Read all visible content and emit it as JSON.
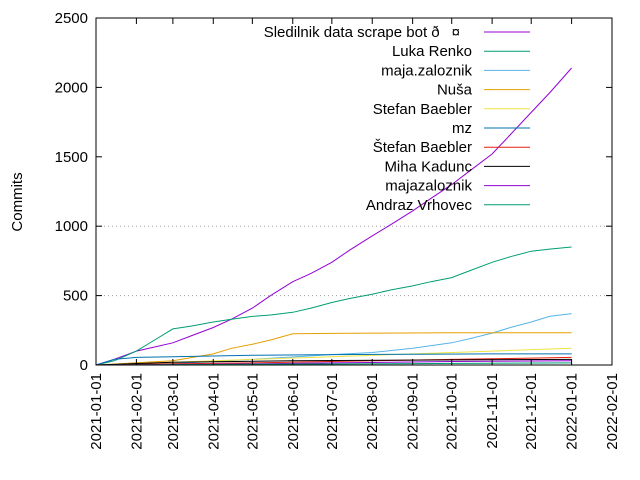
{
  "chart_data": {
    "type": "line",
    "title": "",
    "xlabel": "",
    "ylabel": "Commits",
    "xlim": [
      "2021-01-01",
      "2022-02-01"
    ],
    "ylim": [
      0,
      2500
    ],
    "x_ticks": [
      "2021-01-01",
      "2021-02-01",
      "2021-03-01",
      "2021-04-01",
      "2021-05-01",
      "2021-06-01",
      "2021-07-01",
      "2021-08-01",
      "2021-09-01",
      "2021-10-01",
      "2021-11-01",
      "2021-12-01",
      "2022-01-01",
      "2022-02-01"
    ],
    "y_ticks": [
      0,
      500,
      1000,
      1500,
      2000,
      2500
    ],
    "y_grid": [
      500,
      1000
    ],
    "legend_position": "top-right",
    "series": [
      {
        "name": "Sledilnik data scrape bot ð¤",
        "color": "#9400d3",
        "points": [
          [
            "2021-01-01",
            0
          ],
          [
            "2021-01-15",
            40
          ],
          [
            "2021-02-01",
            100
          ],
          [
            "2021-02-15",
            130
          ],
          [
            "2021-03-01",
            160
          ],
          [
            "2021-03-15",
            210
          ],
          [
            "2021-04-01",
            270
          ],
          [
            "2021-04-15",
            330
          ],
          [
            "2021-05-01",
            410
          ],
          [
            "2021-05-15",
            500
          ],
          [
            "2021-06-01",
            600
          ],
          [
            "2021-06-15",
            660
          ],
          [
            "2021-07-01",
            740
          ],
          [
            "2021-07-15",
            830
          ],
          [
            "2021-08-01",
            930
          ],
          [
            "2021-08-15",
            1010
          ],
          [
            "2021-09-01",
            1110
          ],
          [
            "2021-09-15",
            1200
          ],
          [
            "2021-10-01",
            1300
          ],
          [
            "2021-10-15",
            1400
          ],
          [
            "2021-11-01",
            1520
          ],
          [
            "2021-11-15",
            1660
          ],
          [
            "2021-12-01",
            1820
          ],
          [
            "2021-12-15",
            1960
          ],
          [
            "2022-01-01",
            2140
          ]
        ]
      },
      {
        "name": "Luka Renko",
        "color": "#009e73",
        "points": [
          [
            "2021-01-01",
            0
          ],
          [
            "2021-01-15",
            30
          ],
          [
            "2021-02-01",
            100
          ],
          [
            "2021-02-15",
            180
          ],
          [
            "2021-03-01",
            260
          ],
          [
            "2021-03-15",
            280
          ],
          [
            "2021-04-01",
            310
          ],
          [
            "2021-04-15",
            330
          ],
          [
            "2021-05-01",
            350
          ],
          [
            "2021-05-15",
            360
          ],
          [
            "2021-06-01",
            380
          ],
          [
            "2021-06-15",
            410
          ],
          [
            "2021-07-01",
            450
          ],
          [
            "2021-07-15",
            480
          ],
          [
            "2021-08-01",
            510
          ],
          [
            "2021-08-15",
            540
          ],
          [
            "2021-09-01",
            570
          ],
          [
            "2021-09-15",
            600
          ],
          [
            "2021-10-01",
            630
          ],
          [
            "2021-10-15",
            680
          ],
          [
            "2021-11-01",
            740
          ],
          [
            "2021-11-15",
            780
          ],
          [
            "2021-12-01",
            820
          ],
          [
            "2021-12-15",
            835
          ],
          [
            "2022-01-01",
            850
          ]
        ]
      },
      {
        "name": "maja.zaloznik",
        "color": "#56b4e9",
        "points": [
          [
            "2021-01-01",
            0
          ],
          [
            "2021-03-01",
            10
          ],
          [
            "2021-05-01",
            40
          ],
          [
            "2021-07-01",
            75
          ],
          [
            "2021-08-01",
            90
          ],
          [
            "2021-09-01",
            120
          ],
          [
            "2021-10-01",
            160
          ],
          [
            "2021-10-15",
            190
          ],
          [
            "2021-11-01",
            230
          ],
          [
            "2021-11-15",
            270
          ],
          [
            "2021-12-01",
            310
          ],
          [
            "2021-12-15",
            350
          ],
          [
            "2022-01-01",
            370
          ]
        ]
      },
      {
        "name": "Nuša",
        "color": "#e69f00",
        "points": [
          [
            "2021-01-01",
            0
          ],
          [
            "2021-03-01",
            30
          ],
          [
            "2021-04-01",
            80
          ],
          [
            "2021-04-15",
            120
          ],
          [
            "2021-05-01",
            150
          ],
          [
            "2021-05-15",
            180
          ],
          [
            "2021-06-01",
            225
          ],
          [
            "2021-07-01",
            228
          ],
          [
            "2021-08-01",
            230
          ],
          [
            "2021-10-01",
            232
          ],
          [
            "2021-12-01",
            232
          ],
          [
            "2022-01-01",
            232
          ]
        ]
      },
      {
        "name": "Stefan Baebler",
        "color": "#f0e442",
        "points": [
          [
            "2021-01-01",
            0
          ],
          [
            "2021-03-01",
            20
          ],
          [
            "2021-05-01",
            40
          ],
          [
            "2021-07-01",
            60
          ],
          [
            "2021-09-01",
            80
          ],
          [
            "2021-11-01",
            100
          ],
          [
            "2022-01-01",
            120
          ]
        ]
      },
      {
        "name": "mz",
        "color": "#0072b2",
        "points": [
          [
            "2021-01-01",
            0
          ],
          [
            "2021-01-15",
            40
          ],
          [
            "2021-02-01",
            55
          ],
          [
            "2021-03-01",
            60
          ],
          [
            "2021-05-01",
            70
          ],
          [
            "2021-07-01",
            75
          ],
          [
            "2021-09-01",
            78
          ],
          [
            "2021-11-01",
            80
          ],
          [
            "2022-01-01",
            80
          ]
        ]
      },
      {
        "name": "Štefan Baebler",
        "color": "#e51e10",
        "points": [
          [
            "2021-01-01",
            0
          ],
          [
            "2021-02-01",
            5
          ],
          [
            "2021-05-01",
            15
          ],
          [
            "2021-08-01",
            30
          ],
          [
            "2021-10-01",
            40
          ],
          [
            "2021-12-01",
            50
          ],
          [
            "2022-01-01",
            55
          ]
        ]
      },
      {
        "name": "Miha Kadunc",
        "color": "#000000",
        "points": [
          [
            "2021-01-01",
            0
          ],
          [
            "2021-03-01",
            20
          ],
          [
            "2021-06-01",
            30
          ],
          [
            "2021-09-01",
            35
          ],
          [
            "2022-01-01",
            40
          ]
        ]
      },
      {
        "name": "majazaloznik",
        "color": "#9400d3",
        "points": [
          [
            "2021-01-01",
            0
          ],
          [
            "2021-04-01",
            5
          ],
          [
            "2021-07-01",
            15
          ],
          [
            "2021-10-01",
            25
          ],
          [
            "2022-01-01",
            30
          ]
        ]
      },
      {
        "name": "Andraz Vrhovec",
        "color": "#009e73",
        "points": [
          [
            "2021-01-01",
            0
          ],
          [
            "2021-05-01",
            5
          ],
          [
            "2021-09-01",
            10
          ],
          [
            "2022-01-01",
            15
          ]
        ]
      }
    ]
  }
}
